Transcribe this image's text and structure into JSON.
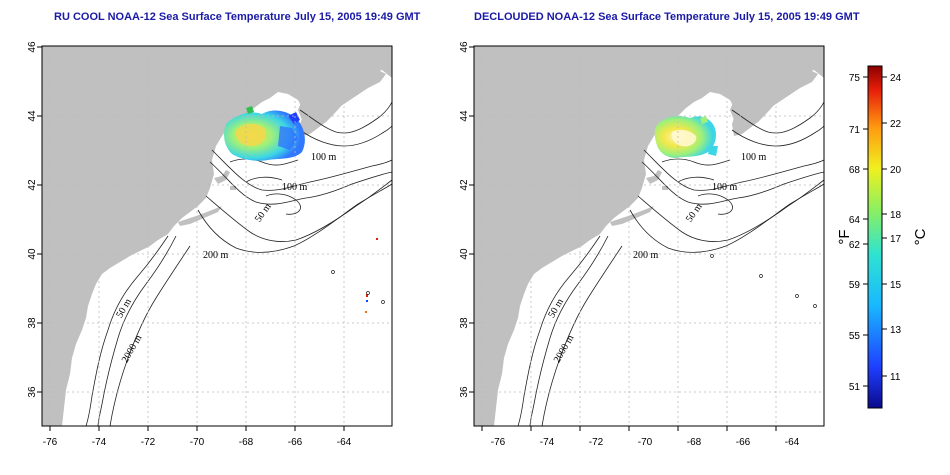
{
  "panels": [
    {
      "title": "RU COOL NOAA-12 Sea Surface Temperature July 15, 2005 19:49 GMT"
    },
    {
      "title": "DECLOUDED NOAA-12 Sea Surface Temperature July 15, 2005 19:49 GMT"
    }
  ],
  "axes": {
    "lon_ticks": [
      "-76",
      "-74",
      "-72",
      "-70",
      "-68",
      "-66",
      "-64"
    ],
    "lat_ticks": [
      "36",
      "38",
      "40",
      "42",
      "44",
      "46"
    ]
  },
  "contour_labels": {
    "left": [
      "100 m",
      "100 m",
      "50 m",
      "200 m",
      "50 m",
      "2000 m"
    ],
    "right": [
      "100 m",
      "100 m",
      "50 m",
      "200 m",
      "50 m",
      "2000 m"
    ]
  },
  "colorbar": {
    "fahrenheit_ticks": [
      "75",
      "71",
      "68",
      "64",
      "62",
      "59",
      "55",
      "51"
    ],
    "celsius_ticks": [
      "24",
      "22",
      "20",
      "18",
      "17",
      "15",
      "13",
      "11"
    ],
    "fahrenheit_unit": "°F",
    "celsius_unit": "°C"
  },
  "colors": {
    "title": "#1a1aa6",
    "land": "#c0c0c0",
    "grid": "#bbbbbb"
  }
}
